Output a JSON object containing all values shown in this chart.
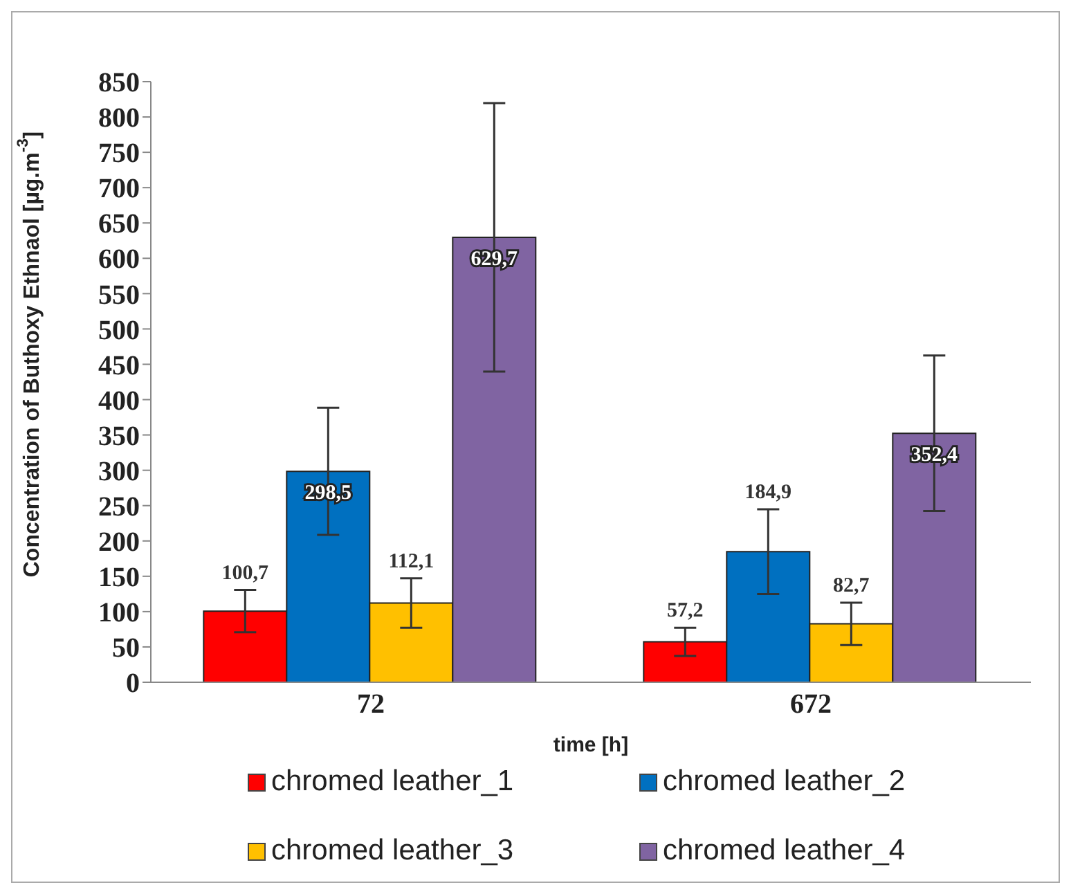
{
  "chart_data": {
    "type": "bar",
    "ylabel": "Concentration of Buthoxy Ethnaol  [µg.m$^{-3}$]",
    "xlabel": "time [h]",
    "categories": [
      "72",
      "672"
    ],
    "series": [
      {
        "name": "chromed leather_1",
        "color": "#ff0000",
        "values": [
          100.7,
          57.2
        ],
        "value_labels": [
          "100,7",
          "57,2"
        ],
        "errors": [
          30,
          20
        ]
      },
      {
        "name": "chromed leather_2",
        "color": "#0070c0",
        "values": [
          298.5,
          184.9
        ],
        "value_labels": [
          "298,5",
          "184,9"
        ],
        "errors": [
          90,
          60
        ]
      },
      {
        "name": "chromed leather_3",
        "color": "#ffc000",
        "values": [
          112.1,
          82.7
        ],
        "value_labels": [
          "112,1",
          "82,7"
        ],
        "errors": [
          35,
          30
        ]
      },
      {
        "name": "chromed leather_4",
        "color": "#8064a2",
        "values": [
          629.7,
          352.4
        ],
        "value_labels": [
          "629,7",
          "352,4"
        ],
        "errors": [
          190,
          110
        ]
      }
    ],
    "ylim": [
      0,
      850
    ],
    "yticks": [
      0,
      50,
      100,
      150,
      200,
      250,
      300,
      350,
      400,
      450,
      500,
      550,
      600,
      650,
      700,
      750,
      800,
      850
    ],
    "legend": "bottom",
    "grid": false
  }
}
